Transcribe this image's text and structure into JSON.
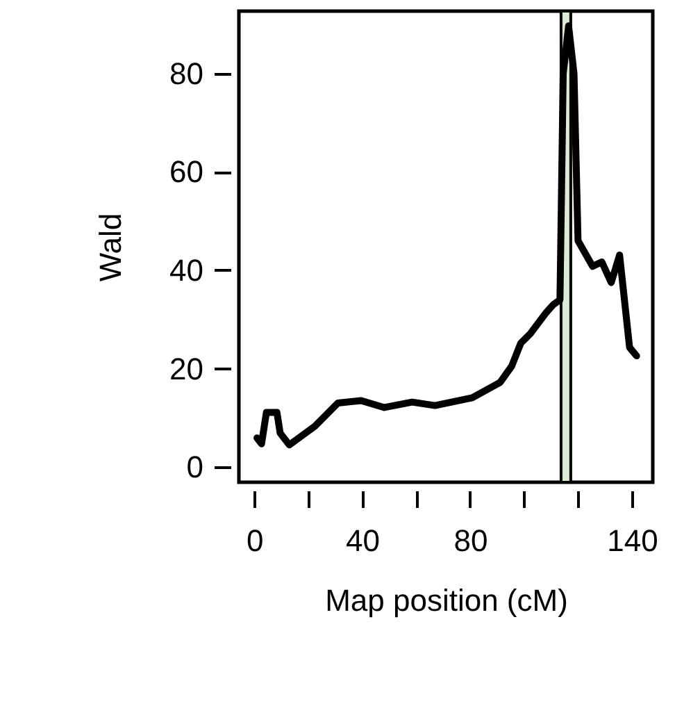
{
  "chart_data": {
    "type": "line",
    "xlabel": "Map position (cM)",
    "ylabel": "Wald",
    "x": [
      1,
      2.7,
      4.5,
      8.4,
      9.6,
      13,
      22.5,
      31,
      39.6,
      48.2,
      58.5,
      67,
      80.8,
      91.1,
      95.4,
      98.8,
      102.3,
      108.2,
      110.8,
      113.3,
      114.5,
      116.5,
      118.5,
      120,
      125.4,
      128.8,
      132.3,
      135.4,
      139.1,
      141.7
    ],
    "series": [
      {
        "color": "#000000",
        "values": [
          5.9,
          4.7,
          11.1,
          11.1,
          6.9,
          4.5,
          8.3,
          13,
          13.5,
          12.1,
          13.2,
          12.5,
          14.1,
          17.2,
          20.5,
          25.2,
          27.1,
          31.4,
          33,
          34,
          80,
          89.7,
          80,
          46,
          40.8,
          41.7,
          37.5,
          43.1,
          24.3,
          22.6
        ]
      }
    ],
    "xlim": [
      -5.7,
      147.7
    ],
    "ylim": [
      -3.1,
      92.7
    ],
    "xticks": [
      0,
      {
        "value": 20,
        "label": null
      },
      40,
      {
        "value": 60,
        "label": null
      },
      80,
      {
        "value": 100,
        "label": null
      },
      {
        "value": 120,
        "label": null
      },
      140
    ],
    "yticks": [
      0,
      20,
      40,
      60,
      80
    ],
    "bands": [
      {
        "axis": "x",
        "from": 113.7,
        "to": 117.3,
        "color": "#dcebd6"
      }
    ],
    "grid": false,
    "marker": "none",
    "line_style": "solid"
  }
}
